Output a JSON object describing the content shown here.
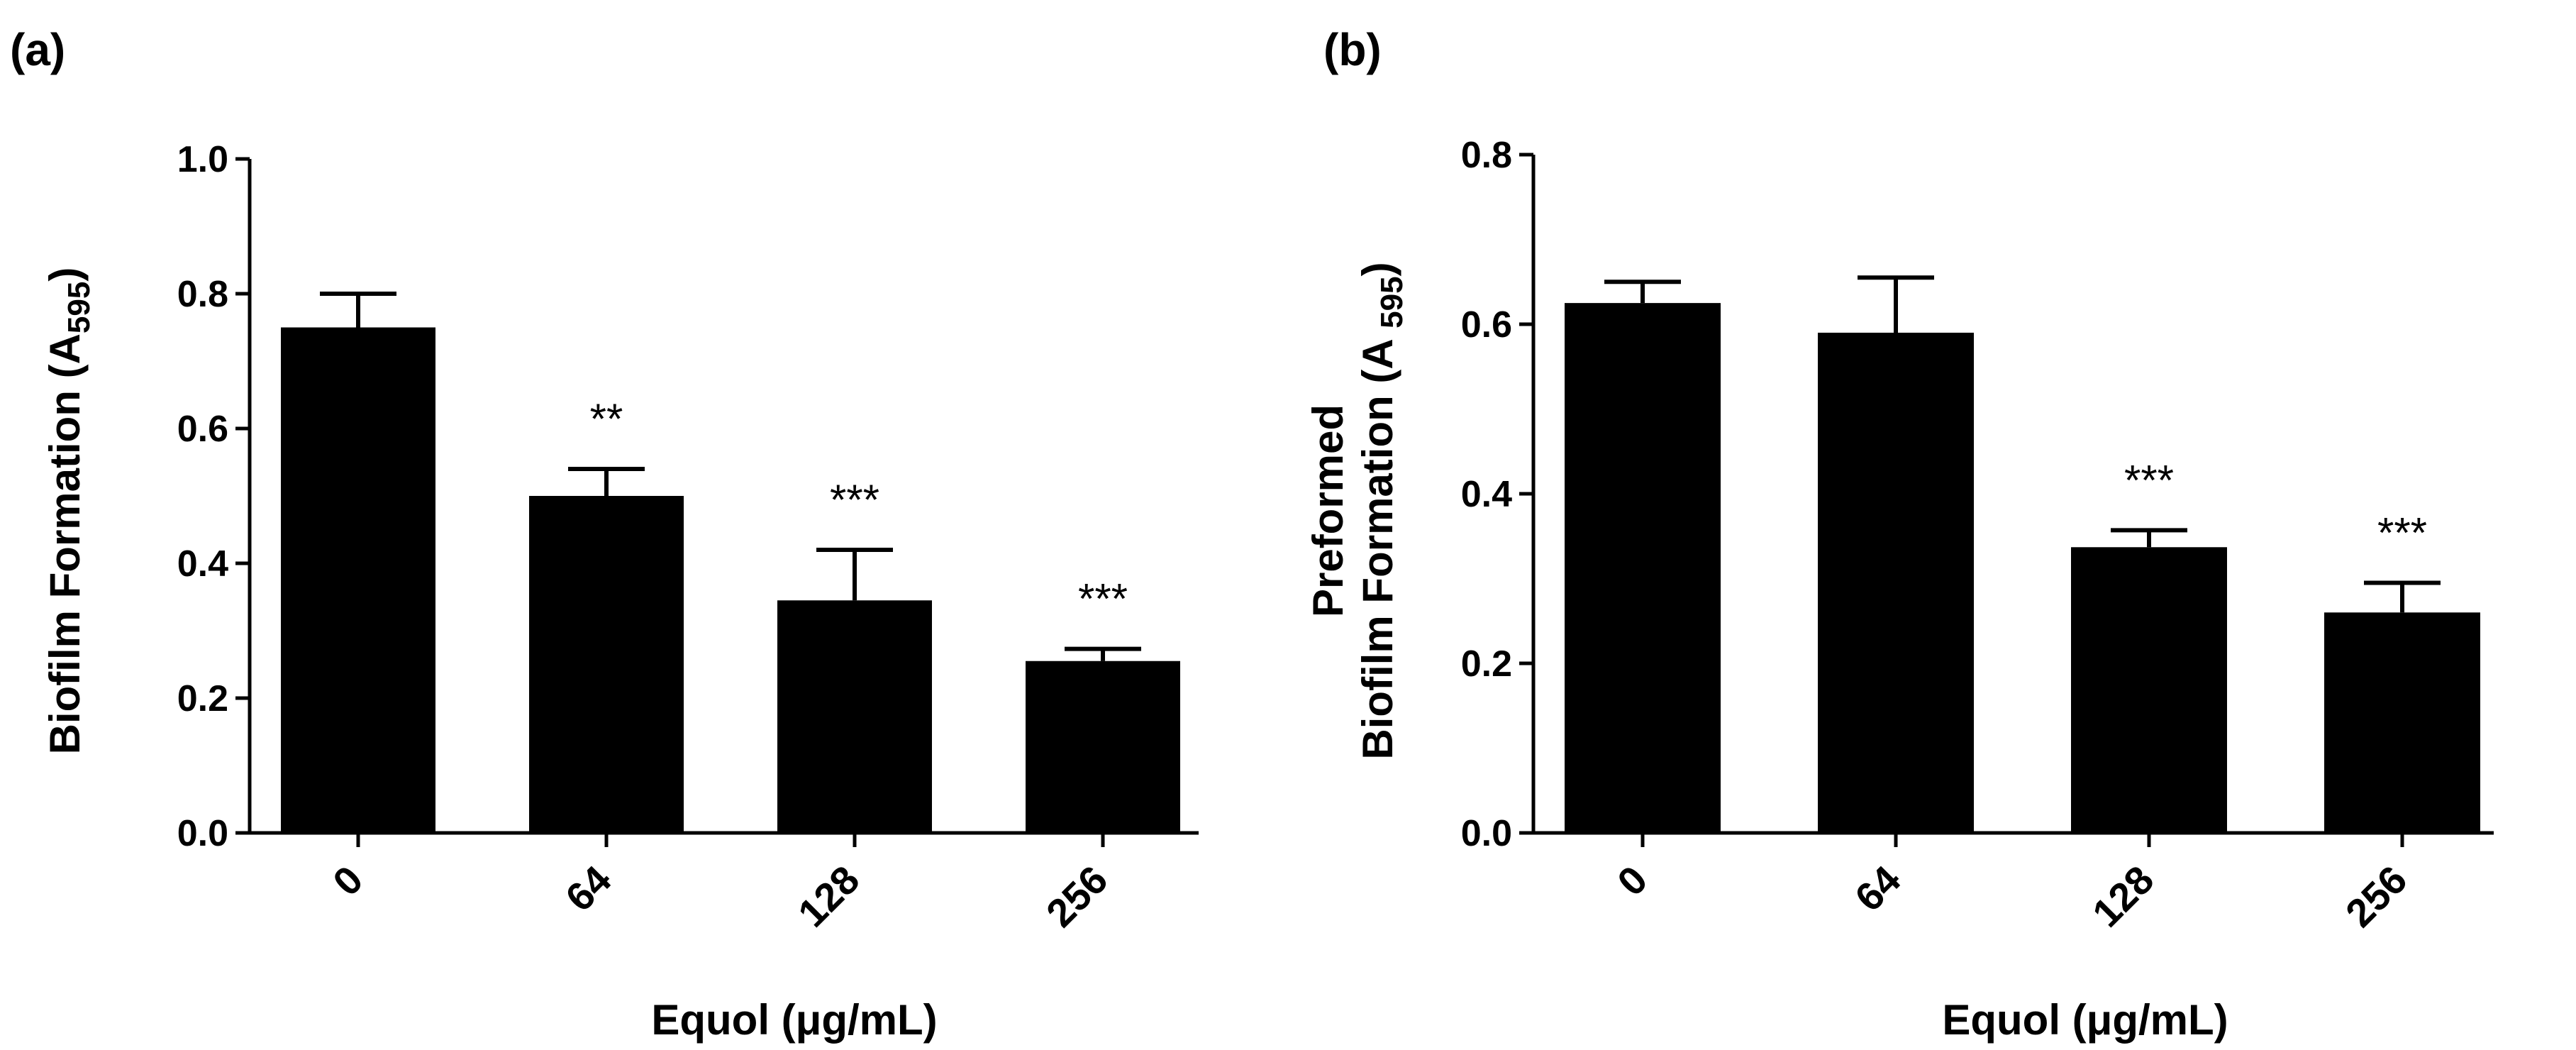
{
  "chart_data": [
    {
      "type": "bar",
      "panel_label": "(a)",
      "categories": [
        "0",
        "64",
        "128",
        "256"
      ],
      "values": [
        0.75,
        0.5,
        0.345,
        0.255
      ],
      "errors": [
        0.05,
        0.04,
        0.075,
        0.018
      ],
      "significance": [
        "",
        "**",
        "***",
        "***"
      ],
      "ylim": [
        0,
        1.0
      ],
      "yticks": [
        "0.0",
        "0.2",
        "0.4",
        "0.6",
        "0.8",
        "1.0"
      ],
      "ytick_values": [
        0,
        0.2,
        0.4,
        0.6,
        0.8,
        1.0
      ],
      "xlabel": "Equol (μg/mL)",
      "ylabel_lines": [
        "Biofilm Formation (A595)"
      ],
      "ylabel_main": "Biofilm Formation (A",
      "ylabel_sub": "595",
      "ylabel_close": ")",
      "bar_color": "#000000"
    },
    {
      "type": "bar",
      "panel_label": "(b)",
      "categories": [
        "0",
        "64",
        "128",
        "256"
      ],
      "values": [
        0.625,
        0.59,
        0.337,
        0.26
      ],
      "errors": [
        0.025,
        0.065,
        0.02,
        0.035
      ],
      "significance": [
        "",
        "",
        "***",
        "***"
      ],
      "ylim": [
        0,
        0.8
      ],
      "yticks": [
        "0.0",
        "0.2",
        "0.4",
        "0.6",
        "0.8"
      ],
      "ytick_values": [
        0,
        0.2,
        0.4,
        0.6,
        0.8
      ],
      "xlabel": "Equol (μg/mL)",
      "ylabel_line1": "Preformed",
      "ylabel_main": "Biofilm Formation (A ",
      "ylabel_sub": "595",
      "ylabel_close": ")",
      "bar_color": "#000000"
    }
  ]
}
